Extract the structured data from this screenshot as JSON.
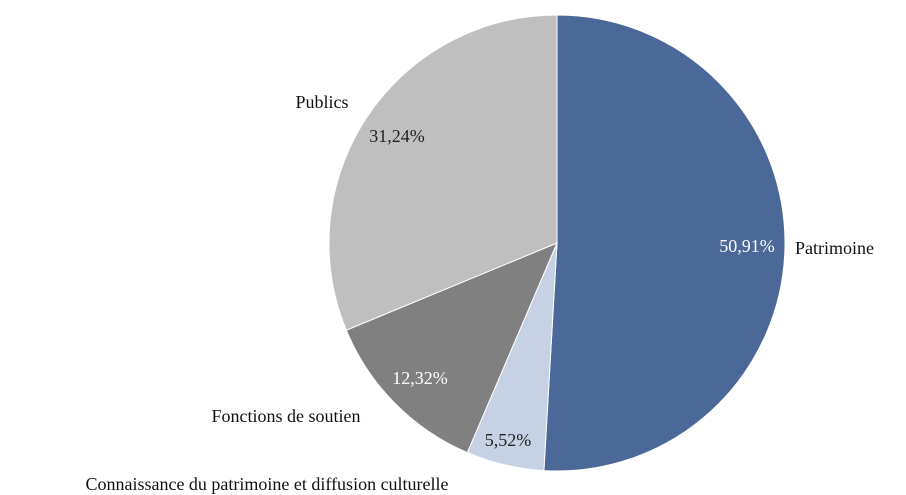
{
  "chart_data": {
    "type": "pie",
    "categories": [
      "Patrimoine",
      "Connaissance du patrimoine et diffusion culturelle",
      "Fonctions de soutien",
      "Publics"
    ],
    "values": [
      50.91,
      5.52,
      12.32,
      31.24
    ],
    "value_labels": [
      "50,91%",
      "5,52%",
      "12,32%",
      "31,24%"
    ],
    "colors": [
      "#4a6998",
      "#c6d1e4",
      "#808080",
      "#bfbfbf"
    ]
  }
}
